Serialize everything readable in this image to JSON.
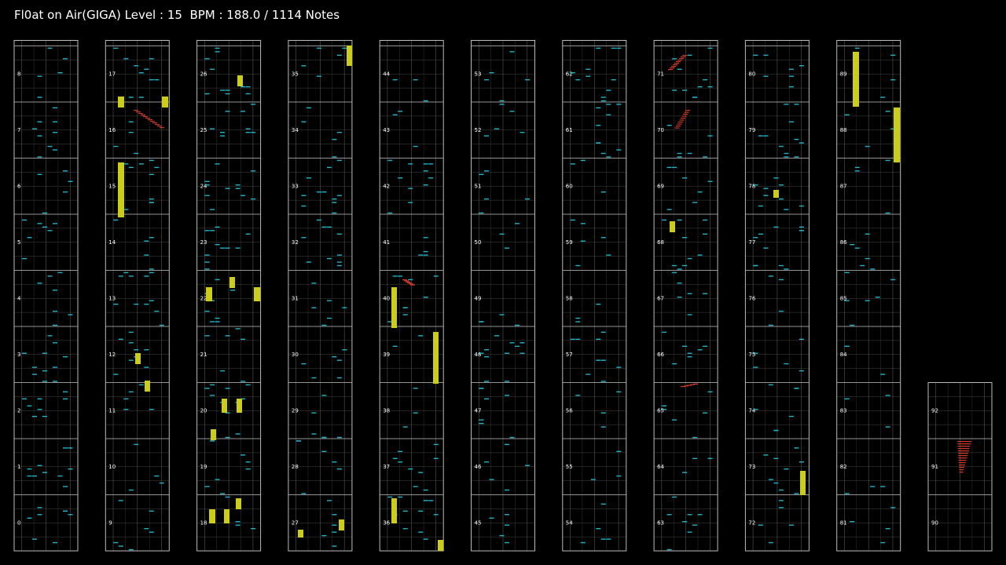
{
  "header": {
    "title": "Fl0at on Air(GIGA) Level : 15  BPM : 188.0 / 1114 Notes"
  },
  "columns": [
    {
      "measures": [
        0,
        1,
        2,
        3,
        4,
        5,
        6,
        7,
        8
      ]
    },
    {
      "measures": [
        9,
        10,
        11,
        12,
        13,
        14,
        15,
        16,
        17
      ]
    },
    {
      "measures": [
        18,
        19,
        20,
        21,
        22,
        23,
        24,
        25,
        26
      ]
    },
    {
      "measures": [
        27,
        28,
        29,
        30,
        31,
        32,
        33,
        34,
        35
      ]
    },
    {
      "measures": [
        36,
        37,
        38,
        39,
        40,
        41,
        42,
        43,
        44
      ]
    },
    {
      "measures": [
        45,
        46,
        47,
        48,
        49,
        50,
        51,
        52,
        53
      ]
    },
    {
      "measures": [
        54,
        55,
        56,
        57,
        58,
        59,
        60,
        61,
        62
      ]
    },
    {
      "measures": [
        63,
        64,
        65,
        66,
        67,
        68,
        69,
        70,
        71
      ]
    },
    {
      "measures": [
        72,
        73,
        74,
        75,
        76,
        77,
        78,
        79,
        80
      ]
    },
    {
      "measures": [
        81,
        82,
        83,
        84,
        85,
        86,
        87,
        88,
        89
      ]
    },
    {
      "measures": [
        90,
        91,
        92
      ]
    }
  ]
}
